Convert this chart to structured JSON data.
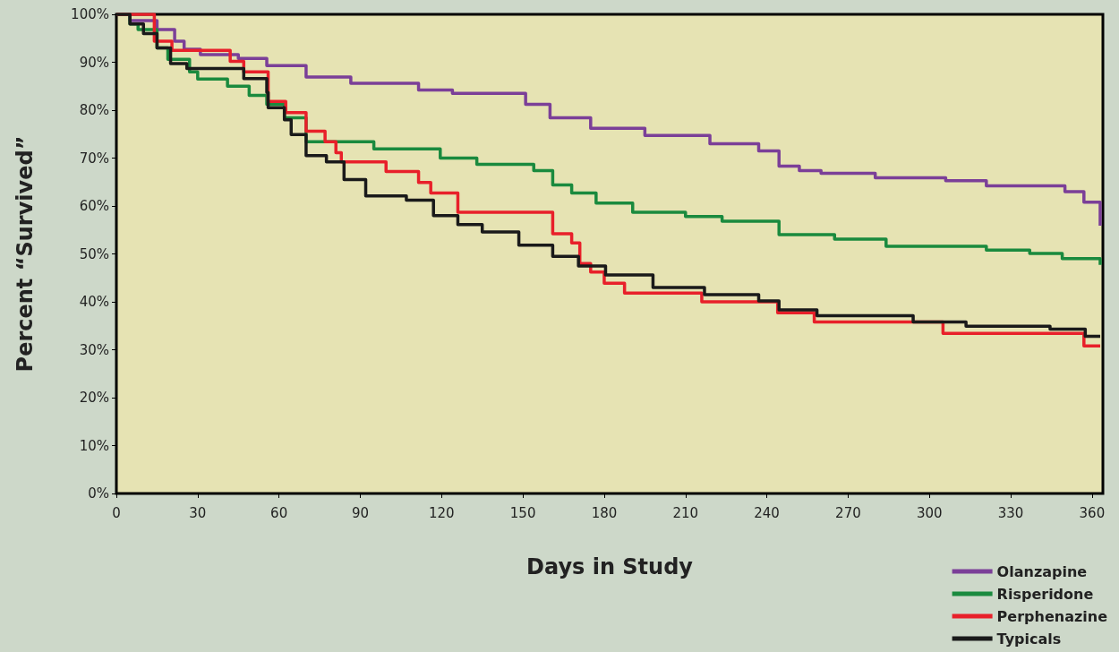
{
  "chart_data": {
    "type": "step",
    "xlabel": "Days in Study",
    "ylabel": "Percent “Survived”",
    "xlim": [
      0,
      364
    ],
    "xticks": [
      0,
      30,
      60,
      90,
      120,
      150,
      180,
      210,
      240,
      270,
      300,
      330,
      360
    ],
    "ylim": [
      0,
      100
    ],
    "yticks": [
      {
        "value": 0,
        "label": "0%"
      },
      {
        "value": 10,
        "label": "10%"
      },
      {
        "value": 20,
        "label": "20%"
      },
      {
        "value": 30,
        "label": "30%"
      },
      {
        "value": 40,
        "label": "40%"
      },
      {
        "value": 50,
        "label": "50%"
      },
      {
        "value": 60,
        "label": "60%"
      },
      {
        "value": 70,
        "label": "70%"
      },
      {
        "value": 80,
        "label": "80%"
      },
      {
        "value": 90,
        "label": "90%"
      },
      {
        "value": 100,
        "label": "100%"
      }
    ],
    "grid": false,
    "legend": "bottom right",
    "marker": "none",
    "line_style": "solid",
    "series": [
      {
        "name": "Olanzapine",
        "color": "#7b3f98",
        "x": [
          0,
          5,
          15,
          21.5,
          25,
          31,
          45,
          55.5,
          70,
          86.5,
          111.5,
          124,
          151,
          160,
          175,
          195,
          219,
          237,
          244.5,
          252,
          260,
          280,
          306,
          321,
          350,
          357,
          363
        ],
        "values": [
          100,
          98.7,
          96.8,
          94.4,
          92.7,
          91.6,
          90.8,
          89.3,
          86.9,
          85.6,
          84.2,
          83.5,
          81.2,
          78.4,
          76.2,
          74.7,
          73,
          71.5,
          68.3,
          67.4,
          66.8,
          65.9,
          65.3,
          64.2,
          63,
          60.8,
          55.9
        ]
      },
      {
        "name": "Risperidone",
        "color": "#1a8a3e",
        "x": [
          0,
          5,
          8,
          15,
          19,
          27,
          30,
          41,
          49,
          55.5,
          62,
          70,
          95,
          119.5,
          133,
          154,
          161,
          168,
          177,
          190.5,
          210,
          223.5,
          244.5,
          265,
          284,
          321,
          337,
          349,
          363
        ],
        "values": [
          100,
          98,
          96.8,
          93,
          90.6,
          88,
          86.5,
          85,
          83.1,
          81.2,
          78.4,
          73.4,
          71.9,
          70,
          68.7,
          67.4,
          64.4,
          62.7,
          60.6,
          58.7,
          57.8,
          56.8,
          54,
          53.1,
          51.6,
          50.8,
          50.1,
          49,
          47.7
        ]
      },
      {
        "name": "Perphenazine",
        "color": "#e8202a",
        "x": [
          0,
          14,
          20.5,
          42,
          47,
          56,
          62.5,
          70,
          77,
          81,
          83,
          99.5,
          111.5,
          116,
          126,
          161,
          168,
          171,
          175,
          180,
          187.5,
          216,
          244,
          257.5,
          305,
          357,
          363
        ],
        "values": [
          100,
          94.4,
          92.5,
          90.2,
          88,
          81.8,
          79.5,
          75.6,
          73.4,
          71.1,
          69.2,
          67.2,
          64.9,
          62.7,
          58.7,
          54.2,
          52.3,
          48,
          46.2,
          43.9,
          41.8,
          40,
          37.7,
          35.8,
          33.4,
          30.8,
          30.8
        ]
      },
      {
        "name": "Typicals",
        "color": "#1a1a1a",
        "x": [
          0,
          5,
          10,
          15,
          20,
          26,
          39.5,
          47,
          55.5,
          56,
          62,
          64.5,
          70,
          77.5,
          84,
          92,
          107,
          117,
          126,
          135,
          148.5,
          161,
          170.5,
          180.5,
          198,
          217,
          237,
          244.5,
          258.5,
          294,
          313.5,
          344.5,
          357.5,
          363
        ],
        "values": [
          100,
          98,
          96,
          93,
          89.7,
          88.7,
          88.7,
          86.6,
          83.7,
          80.5,
          78,
          74.9,
          70.5,
          69.2,
          65.5,
          62.1,
          61.2,
          58,
          56.1,
          54.6,
          51.8,
          49.5,
          47.5,
          45.6,
          43,
          41.5,
          40.2,
          38.3,
          37.1,
          35.8,
          34.9,
          34.3,
          32.8,
          32.8
        ]
      }
    ]
  }
}
